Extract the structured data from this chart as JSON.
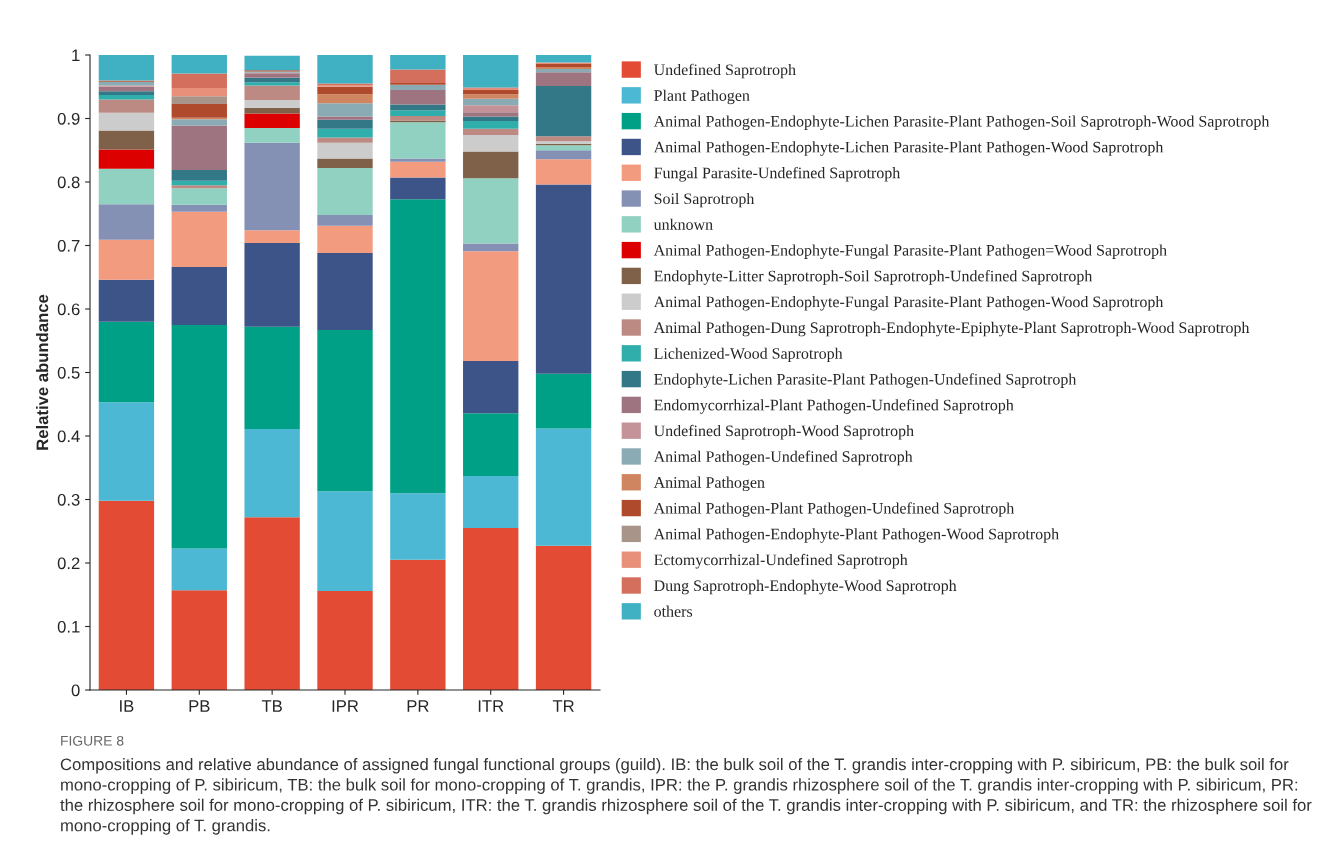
{
  "chart_data": {
    "type": "bar",
    "stacked": true,
    "ylabel": "Relative abundance",
    "categories": [
      "IB",
      "PB",
      "TB",
      "IPR",
      "PR",
      "ITR",
      "TR"
    ],
    "ylim": [
      0,
      1
    ],
    "yticks": [
      0,
      0.1,
      0.2,
      0.3,
      0.4,
      0.5,
      0.6,
      0.7,
      0.8,
      0.9,
      1
    ],
    "grid": false,
    "legend": "right",
    "series": [
      {
        "name": "Undefined Saprotroph",
        "color": "#e34b35",
        "values": [
          0.298,
          0.157,
          0.272,
          0.156,
          0.205,
          0.255,
          0.227
        ]
      },
      {
        "name": "Plant Pathogen",
        "color": "#4db8d3",
        "values": [
          0.155,
          0.066,
          0.139,
          0.157,
          0.105,
          0.082,
          0.185
        ]
      },
      {
        "name": "Animal Pathogen-Endophyte-Lichen Parasite-Plant Pathogen-Soil Saprotroph-Wood Saprotroph",
        "color": "#00a087",
        "values": [
          0.127,
          0.352,
          0.161,
          0.254,
          0.463,
          0.099,
          0.086
        ]
      },
      {
        "name": "Animal Pathogen-Endophyte-Lichen Parasite-Plant Pathogen-Wood Saprotroph",
        "color": "#3c5488",
        "values": [
          0.066,
          0.091,
          0.132,
          0.121,
          0.034,
          0.082,
          0.298
        ]
      },
      {
        "name": "Fungal Parasite-Undefined Saprotroph",
        "color": "#f39b7f",
        "values": [
          0.063,
          0.087,
          0.02,
          0.043,
          0.025,
          0.173,
          0.04
        ]
      },
      {
        "name": "Soil Saprotroph",
        "color": "#8491b4",
        "values": [
          0.056,
          0.011,
          0.138,
          0.017,
          0.005,
          0.012,
          0.014
        ]
      },
      {
        "name": "unknown",
        "color": "#91d1c2",
        "values": [
          0.056,
          0.026,
          0.023,
          0.074,
          0.057,
          0.103,
          0.008
        ]
      },
      {
        "name": "Animal Pathogen-Endophyte-Fungal Parasite-Plant Pathogen=Wood Saprotroph",
        "color": "#dc0000",
        "values": [
          0.03,
          0,
          0.023,
          0,
          0,
          0,
          0
        ]
      },
      {
        "name": "Endophyte-Litter Saprotroph-Soil Saprotroph-Undefined Saprotroph",
        "color": "#7e6148",
        "values": [
          0.03,
          0,
          0.009,
          0.015,
          0.003,
          0.042,
          0.002
        ]
      },
      {
        "name": "Animal Pathogen-Endophyte-Fungal Parasite-Plant Pathogen-Wood Saprotroph",
        "color": "#cccccc",
        "values": [
          0.028,
          0,
          0.012,
          0.025,
          0,
          0.026,
          0.004
        ]
      },
      {
        "name": "Animal Pathogen-Dung Saprotroph-Endophyte-Epiphyte-Plant Saprotroph-Wood Saprotroph",
        "color": "#bc8a82",
        "values": [
          0.021,
          0.005,
          0.023,
          0.008,
          0.007,
          0.01,
          0.008
        ]
      },
      {
        "name": "Lichenized-Wood Saprotroph",
        "color": "#30aeac",
        "values": [
          0.007,
          0.007,
          0.005,
          0.014,
          0.009,
          0.012,
          0
        ]
      },
      {
        "name": "Endophyte-Lichen Parasite-Plant Pathogen-Undefined Saprotroph",
        "color": "#337887",
        "values": [
          0.006,
          0.017,
          0.007,
          0.014,
          0.009,
          0.007,
          0.079
        ]
      },
      {
        "name": "Endomycorrhizal-Plant Pathogen-Undefined Saprotroph",
        "color": "#9e7481",
        "values": [
          0.007,
          0.07,
          0.006,
          0.005,
          0.023,
          0.007,
          0.022
        ]
      },
      {
        "name": "Undefined Saprotroph-Wood Saprotroph",
        "color": "#c4939a",
        "values": [
          0.002,
          0,
          0.002,
          0,
          0,
          0.011,
          0
        ]
      },
      {
        "name": "Animal Pathogen-Undefined Saprotroph",
        "color": "#8aaab4",
        "values": [
          0.006,
          0.01,
          0.002,
          0.021,
          0.008,
          0.01,
          0.005
        ]
      },
      {
        "name": "Animal Pathogen",
        "color": "#cf8660",
        "values": [
          0,
          0.002,
          0,
          0.014,
          0,
          0.007,
          0.003
        ]
      },
      {
        "name": "Animal Pathogen-Plant Pathogen-Undefined Saprotroph",
        "color": "#b04a2c",
        "values": [
          0.001,
          0.022,
          0.002,
          0.012,
          0.003,
          0.007,
          0.005
        ]
      },
      {
        "name": "Animal Pathogen-Endophyte-Plant Pathogen-Wood Saprotroph",
        "color": "#a89488",
        "values": [
          0,
          0.012,
          0,
          0,
          0,
          0,
          0
        ]
      },
      {
        "name": "Ectomycorrhizal-Undefined Saprotroph",
        "color": "#e8907a",
        "values": [
          0,
          0.013,
          0,
          0.002,
          0,
          0.002,
          0.002
        ]
      },
      {
        "name": "Dung Saprotroph-Endophyte-Wood Saprotroph",
        "color": "#d36f5c",
        "values": [
          0.001,
          0.023,
          null,
          0.003,
          0.021,
          0.002,
          0
        ]
      },
      {
        "name": "others",
        "color": "#40b1c2",
        "values": [
          0.04,
          0.029,
          0.023,
          0.045,
          0.023,
          0.051,
          0.012
        ]
      }
    ],
    "annotations": [
      "FIGURE 8",
      "Compositions and relative abundance of assigned fungal functional groups (guild). IB: the bulk soil of the T. grandis inter-cropping with P. sibiricum, PB: the bulk soil for mono-cropping of P. sibiricum, TB: the bulk soil for mono-cropping of T. grandis, IPR: the P. grandis rhizosphere soil of the T. grandis inter-cropping with P. sibiricum, PR: the rhizosphere soil for mono-cropping of P. sibiricum, ITR: the T. grandis rhizosphere soil of the T. grandis inter-cropping with P. sibiricum, and TR: the rhizosphere soil for mono-cropping of T. grandis."
    ]
  }
}
